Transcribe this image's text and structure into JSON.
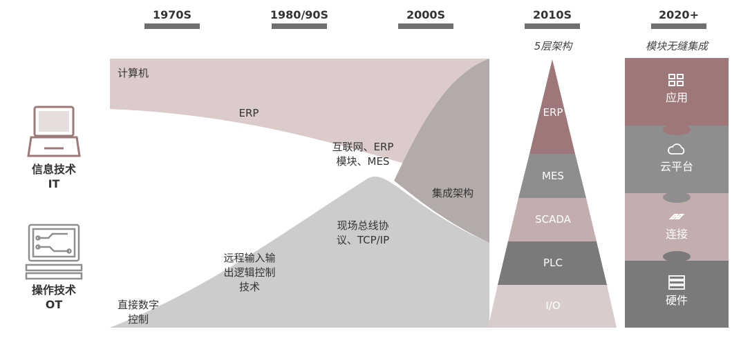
{
  "eras": [
    {
      "label": "1970S"
    },
    {
      "label": "1980/90S"
    },
    {
      "label": "2000S"
    },
    {
      "label": "2010S",
      "subtitle": "5层架构"
    },
    {
      "label": "2020+",
      "subtitle": "模块无缝集成"
    }
  ],
  "sides": {
    "it": {
      "line1": "信息技术",
      "line2": "IT"
    },
    "ot": {
      "line1": "操作技术",
      "line2": "OT"
    }
  },
  "flow": {
    "computer": "计算机",
    "erp": "ERP",
    "internet_l1": "互联网、ERP",
    "internet_l2": "模块、MES",
    "integration": "集成架构",
    "fieldbus_l1": "现场总线协",
    "fieldbus_l2": "议、TCP/IP",
    "remote_l1": "远程输入输",
    "remote_l2": "出逻辑控制",
    "remote_l3": "技术",
    "direct_l1": "直接数字",
    "direct_l2": "控制"
  },
  "pyramid": [
    "ERP",
    "MES",
    "SCADA",
    "PLC",
    "I/O"
  ],
  "modules": [
    {
      "label": "应用",
      "icon": "app-grid-icon"
    },
    {
      "label": "云平台",
      "icon": "cloud-icon"
    },
    {
      "label": "连接",
      "icon": "link-icon"
    },
    {
      "label": "硬件",
      "icon": "server-icon"
    }
  ],
  "colors": {
    "it_band": "#dbcbcb",
    "ot_band": "#cccccc",
    "merge": "#b3aaaa",
    "era_bar": "#6f6f6f",
    "pyramid": [
      "#9e7878",
      "#8e8e8e",
      "#c2aeae",
      "#7a7a7a",
      "#d9cccc"
    ],
    "modules": [
      "#9e7878",
      "#8e8e8e",
      "#c2aeae",
      "#7a7a7a"
    ]
  }
}
